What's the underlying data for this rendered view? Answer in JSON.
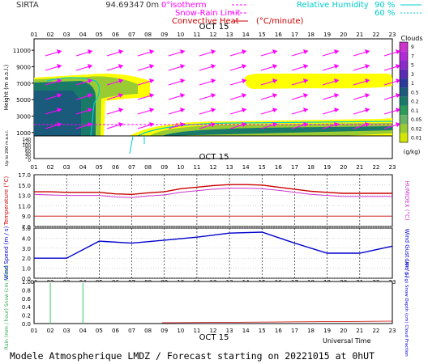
{
  "header": {
    "site": "SIRTA",
    "coords": "94.69347",
    "altitude": "0m",
    "legend_isotherm": "0°isotherm",
    "legend_snow_rain": "Snow-Rain Limit",
    "legend_convective": "Convective Heat",
    "legend_units": "(°C/minute)",
    "legend_rh": "Relative Humidity",
    "legend_rh90": "90 %",
    "legend_rh60": "60 %"
  },
  "footer": {
    "universal_time": "Universal Time",
    "model_line": "Modele Atmospherique LMDZ / Forecast starting on 20221015 at 0hUT"
  },
  "colors": {
    "blue_axis": "#0000cc",
    "temperature": "#cc0000",
    "humidex": "#cc33cc",
    "wind": "#0000cc",
    "isotherm": "#ff00ff",
    "rh": "#00cccc",
    "cloud_ramp": [
      "#ffff00",
      "#d4e600",
      "#99cc33",
      "#66b266",
      "#2e9a5a",
      "#1a7a6a",
      "#1a5a7a",
      "#2a3a9a",
      "#5a2ab0",
      "#8a2ac8",
      "#b02ad8",
      "#cc33cc"
    ]
  },
  "chart_data": [
    {
      "type": "heatmap",
      "title": "",
      "date_label": "OCT 15",
      "hours": [
        "01",
        "02",
        "03",
        "04",
        "05",
        "06",
        "07",
        "08",
        "09",
        "10",
        "11",
        "12",
        "13",
        "14",
        "15",
        "16",
        "17",
        "18",
        "19",
        "20",
        "21",
        "22",
        "23"
      ],
      "ylabel": "Height (m a.s.l.)",
      "yticks_upper": [
        11000,
        9000,
        7000,
        5000,
        3000,
        1000
      ],
      "yticks_lower_label": "Up to 200 m a.s.l.",
      "yticks_lower": [
        140,
        120,
        100,
        80,
        60,
        40,
        20,
        0
      ],
      "colorbar_title": "Clouds",
      "colorbar_units": "(g/kg)",
      "colorbar_levels": [
        "9",
        "7",
        "5",
        "3",
        "1",
        "0.5",
        "0.2",
        "0.1",
        "0.05",
        "0.02",
        "0.01"
      ],
      "isotherm_label": "0",
      "isotherm_height_m": 2500
    },
    {
      "type": "line",
      "title": "",
      "date_label": "OCT 15",
      "hours": [
        "01",
        "02",
        "03",
        "04",
        "05",
        "06",
        "07",
        "08",
        "09",
        "10",
        "11",
        "12",
        "13",
        "14",
        "15",
        "16",
        "17",
        "18",
        "19",
        "20",
        "21",
        "22",
        "23"
      ],
      "ylabel": "Temperature (°C)",
      "ylabel_right": "HUMIDEX (°C)",
      "ylim": [
        7.0,
        17.0
      ],
      "yticks": [
        "17.0",
        "15.0",
        "13.0",
        "11.0",
        "9.0",
        "7.0"
      ],
      "x": [
        1,
        2,
        3,
        4,
        5,
        6,
        7,
        8,
        9,
        10,
        11,
        12,
        13,
        14,
        15,
        16,
        17,
        18,
        19,
        20,
        21,
        22,
        23
      ],
      "series": [
        {
          "name": "Temperature",
          "values": [
            13.7,
            13.7,
            13.6,
            13.6,
            13.6,
            13.3,
            13.2,
            13.5,
            13.7,
            14.3,
            14.6,
            14.9,
            15.1,
            15.1,
            15.0,
            14.6,
            14.2,
            13.8,
            13.6,
            13.4,
            13.4,
            13.4,
            13.4
          ]
        },
        {
          "name": "HUMIDEX",
          "values": [
            13.2,
            13.1,
            13.0,
            13.0,
            13.0,
            12.7,
            12.6,
            12.9,
            13.1,
            13.6,
            13.9,
            14.2,
            14.4,
            14.4,
            14.3,
            14.0,
            13.6,
            13.2,
            13.0,
            12.8,
            12.8,
            12.8,
            12.8
          ]
        }
      ],
      "ref_line": 9.0
    },
    {
      "type": "line",
      "title": "",
      "hours": [
        "01",
        "02",
        "03",
        "04",
        "05",
        "06",
        "07",
        "08",
        "09",
        "10",
        "11",
        "12",
        "13",
        "14",
        "15",
        "16",
        "17",
        "18",
        "19",
        "20",
        "21",
        "22",
        "23"
      ],
      "ylabel": "Wind Speed (m / s)",
      "ylabel_right": "Wind Gust (m / s)",
      "ylim": [
        0.0,
        5.0
      ],
      "yticks": [
        "5.0",
        "4.0",
        "3.0",
        "2.0",
        "1.0",
        "0.0"
      ],
      "x": [
        1,
        3,
        5,
        7,
        9,
        11,
        13,
        15,
        17,
        19,
        21,
        23
      ],
      "series": [
        {
          "name": "Wind Speed",
          "values": [
            2.0,
            2.0,
            3.7,
            3.5,
            3.8,
            4.1,
            4.5,
            4.6,
            3.5,
            2.5,
            2.5,
            3.2
          ]
        }
      ]
    },
    {
      "type": "line",
      "title": "",
      "date_label": "OCT 15",
      "hours": [
        "01",
        "02",
        "03",
        "04",
        "05",
        "06",
        "07",
        "08",
        "09",
        "10",
        "11",
        "12",
        "13",
        "14",
        "15",
        "16",
        "17",
        "18",
        "19",
        "20",
        "21",
        "22",
        "23"
      ],
      "ylabel": "Rain (mm / hour) Snow (cm / hour)",
      "ylabel_right": "CAPE (J / g) Snow Depth (cm) Cloud Fraction",
      "ylim": [
        0.0,
        1.0
      ],
      "yticks": [
        "1.0",
        "0.8",
        "0.6",
        "0.4",
        "0.2",
        "0.0"
      ],
      "series": [
        {
          "name": "Rain",
          "values": [
            0,
            1,
            0,
            1,
            0,
            0,
            0,
            0,
            0,
            0,
            0,
            0,
            0,
            0,
            0,
            0,
            0,
            0,
            0,
            0,
            0,
            0,
            0
          ]
        }
      ]
    }
  ]
}
